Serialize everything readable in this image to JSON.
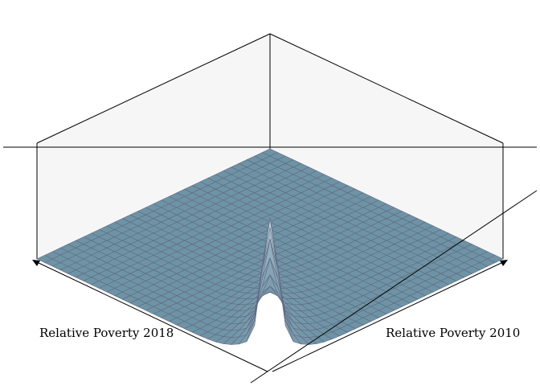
{
  "chart_data": {
    "type": "surface",
    "title": "",
    "xlabel": "Relative Poverty 2010",
    "ylabel": "Relative Poverty 2018",
    "zlabel": "",
    "x_range": [
      0,
      1
    ],
    "y_range": [
      0,
      1
    ],
    "z_range": [
      0,
      1
    ],
    "grid_resolution": 30,
    "peak": {
      "x": 0.98,
      "y": 0.98,
      "height": 0.92
    },
    "colors": {
      "surface_low": "#6e93a5",
      "surface_high": "#c2d4dc",
      "mesh_line": "#5f6a84",
      "panel": "#f6f6f6",
      "axes": "#000000"
    }
  }
}
